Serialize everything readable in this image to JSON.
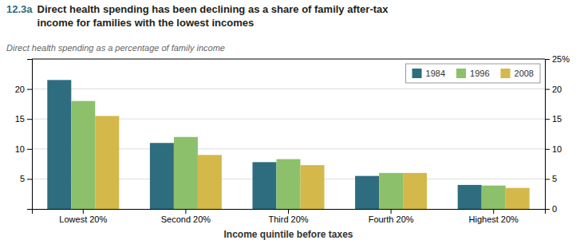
{
  "chart_data": {
    "type": "bar",
    "title": "Direct health spending has been declining as a share of family after-tax\nincome for families with the lowest incomes",
    "annotations": [
      "12.3a"
    ],
    "ylabel": "Direct health spending as a percentage of family income",
    "xlabel": "Income quintile before taxes",
    "categories": [
      "Lowest 20%",
      "Second 20%",
      "Third 20%",
      "Fourth 20%",
      "Highest 20%"
    ],
    "series": [
      {
        "name": "1984",
        "color": "#2e6d80",
        "values": [
          21.5,
          11.0,
          7.8,
          5.5,
          4.0
        ]
      },
      {
        "name": "1996",
        "color": "#8dc06a",
        "values": [
          18.0,
          12.0,
          8.3,
          6.0,
          3.9
        ]
      },
      {
        "name": "2008",
        "color": "#d4b84a",
        "values": [
          15.5,
          9.0,
          7.3,
          6.0,
          3.5
        ]
      }
    ],
    "ylim": [
      0,
      25
    ],
    "yticks": [
      5,
      10,
      15,
      20
    ],
    "y2lim": [
      0,
      25
    ],
    "y2ticks": [
      0,
      5,
      10,
      15,
      20,
      {
        "value": 25,
        "label": "25%"
      }
    ],
    "grid": true,
    "legend": "upper right"
  }
}
